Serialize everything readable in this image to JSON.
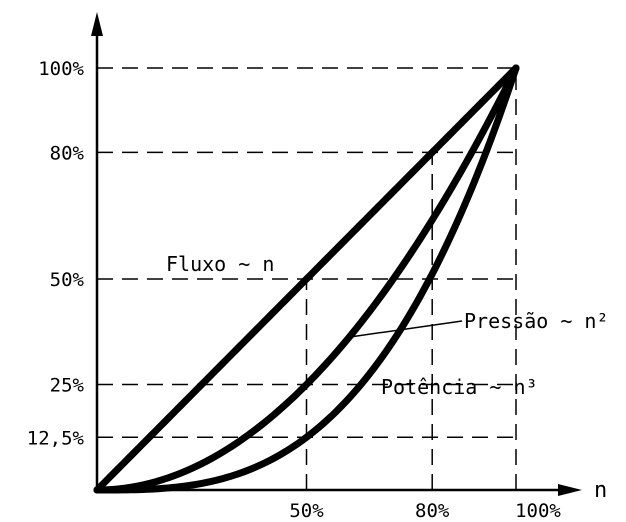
{
  "chart_data": {
    "type": "line",
    "x_axis_label": "n",
    "y_ticks": [
      {
        "value": 100,
        "label": "100%"
      },
      {
        "value": 80,
        "label": "80%"
      },
      {
        "value": 50,
        "label": "50%"
      },
      {
        "value": 25,
        "label": "25%"
      },
      {
        "value": 12.5,
        "label": "12,5%"
      }
    ],
    "x_ticks": [
      {
        "value": 50,
        "label": "50%"
      },
      {
        "value": 80,
        "label": "80%"
      },
      {
        "value": 100,
        "label": "100%"
      }
    ],
    "xlim": [
      0,
      100
    ],
    "ylim": [
      0,
      100
    ],
    "series": [
      {
        "key": "flow",
        "name": "Fluxo ~ n",
        "exponent": 1
      },
      {
        "key": "pressure",
        "name": "Pressão ~ n²",
        "exponent": 2
      },
      {
        "key": "power",
        "name": "Potência ~ n³",
        "exponent": 3
      }
    ],
    "grid": "dashed reference lines at tick values",
    "colors": {
      "line": "#000000",
      "background": "#ffffff"
    }
  }
}
